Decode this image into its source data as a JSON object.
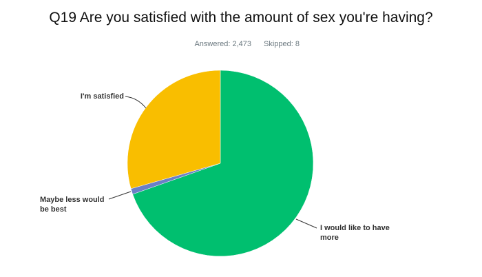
{
  "chart_data": {
    "type": "pie",
    "title": "Q19 Are you satisfied with the amount of sex you're having?",
    "answered": "Answered: 2,473",
    "skipped": "Skipped: 8",
    "categories": [
      "I would like to have more",
      "Maybe less would be best",
      "I'm satisfied"
    ],
    "values": [
      69.6,
      1.0,
      29.4
    ],
    "colors": [
      "#00bf6f",
      "#6b7fc7",
      "#f9be00"
    ]
  }
}
